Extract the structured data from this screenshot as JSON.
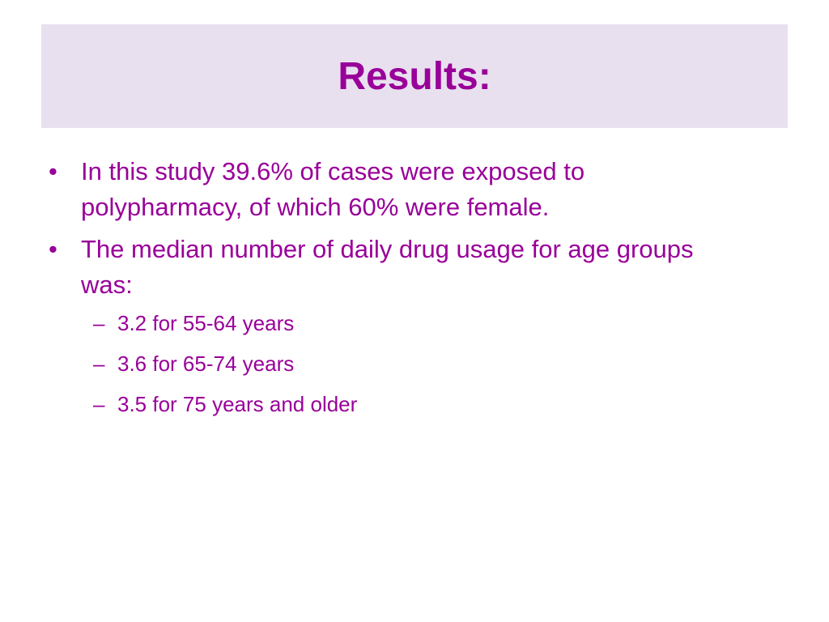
{
  "title": "Results:",
  "bullets": [
    {
      "text": "In this study 39.6% of cases were exposed to polypharmacy, of which 60% were female.",
      "sub": []
    },
    {
      "text": "The median number of daily drug usage for age groups was:",
      "sub": [
        "3.2 for 55-64 years",
        "3.6 for 65-74 years",
        "3.5 for 75 years and older"
      ]
    }
  ]
}
